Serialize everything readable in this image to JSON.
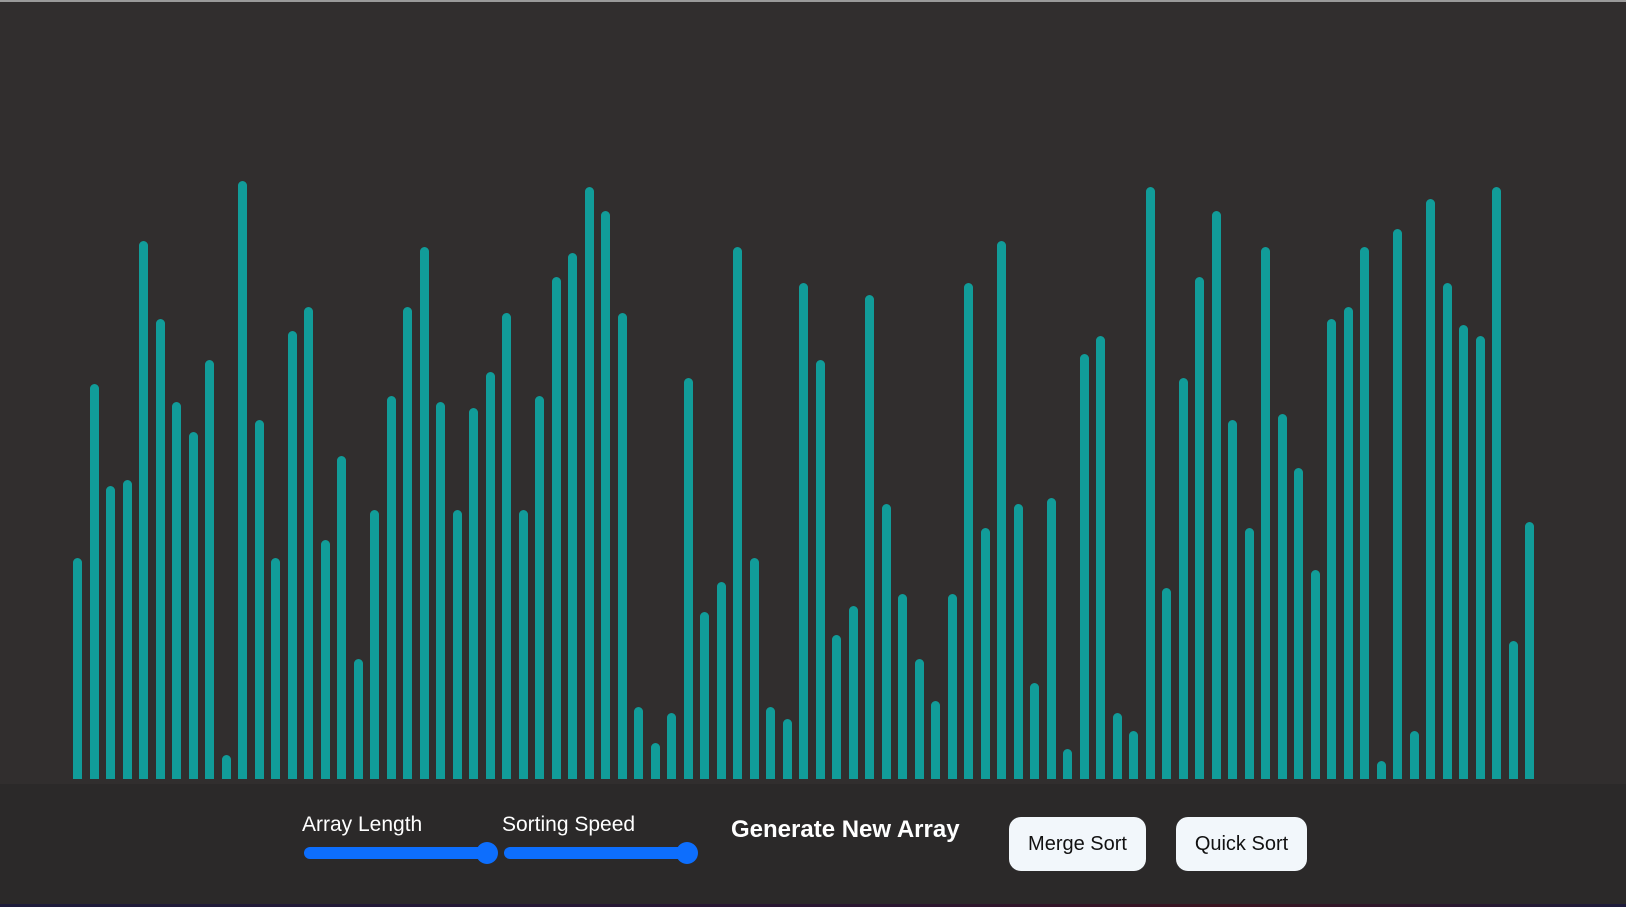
{
  "colors": {
    "bar": "#119c99",
    "stage_bg": "#312e2e",
    "controls_bg": "#2b2929",
    "slider_fill": "#0d6efd",
    "button_bg": "#f2f7fb"
  },
  "chart_data": {
    "type": "bar",
    "values": [
      37,
      66,
      49,
      50,
      90,
      77,
      63,
      58,
      70,
      4,
      100,
      60,
      37,
      75,
      79,
      40,
      54,
      20,
      45,
      64,
      79,
      89,
      63,
      45,
      62,
      68,
      78,
      45,
      64,
      84,
      88,
      99,
      95,
      78,
      12,
      6,
      11,
      67,
      28,
      33,
      89,
      37,
      12,
      10,
      83,
      70,
      24,
      29,
      81,
      46,
      31,
      20,
      13,
      31,
      83,
      42,
      90,
      46,
      16,
      47,
      5,
      71,
      74,
      11,
      8,
      99,
      32,
      67,
      84,
      95,
      60,
      42,
      89,
      61,
      52,
      35,
      77,
      79,
      89,
      3,
      92,
      8,
      97,
      83,
      76,
      74,
      99,
      23,
      43
    ],
    "ylim": [
      0,
      100
    ],
    "grid": false
  },
  "controls": {
    "array_length": {
      "label": "Array Length",
      "value": 1.0
    },
    "sorting_speed": {
      "label": "Sorting Speed",
      "value": 1.0
    },
    "generate_label": "Generate New Array",
    "merge_sort_label": "Merge Sort",
    "quick_sort_label": "Quick Sort"
  }
}
